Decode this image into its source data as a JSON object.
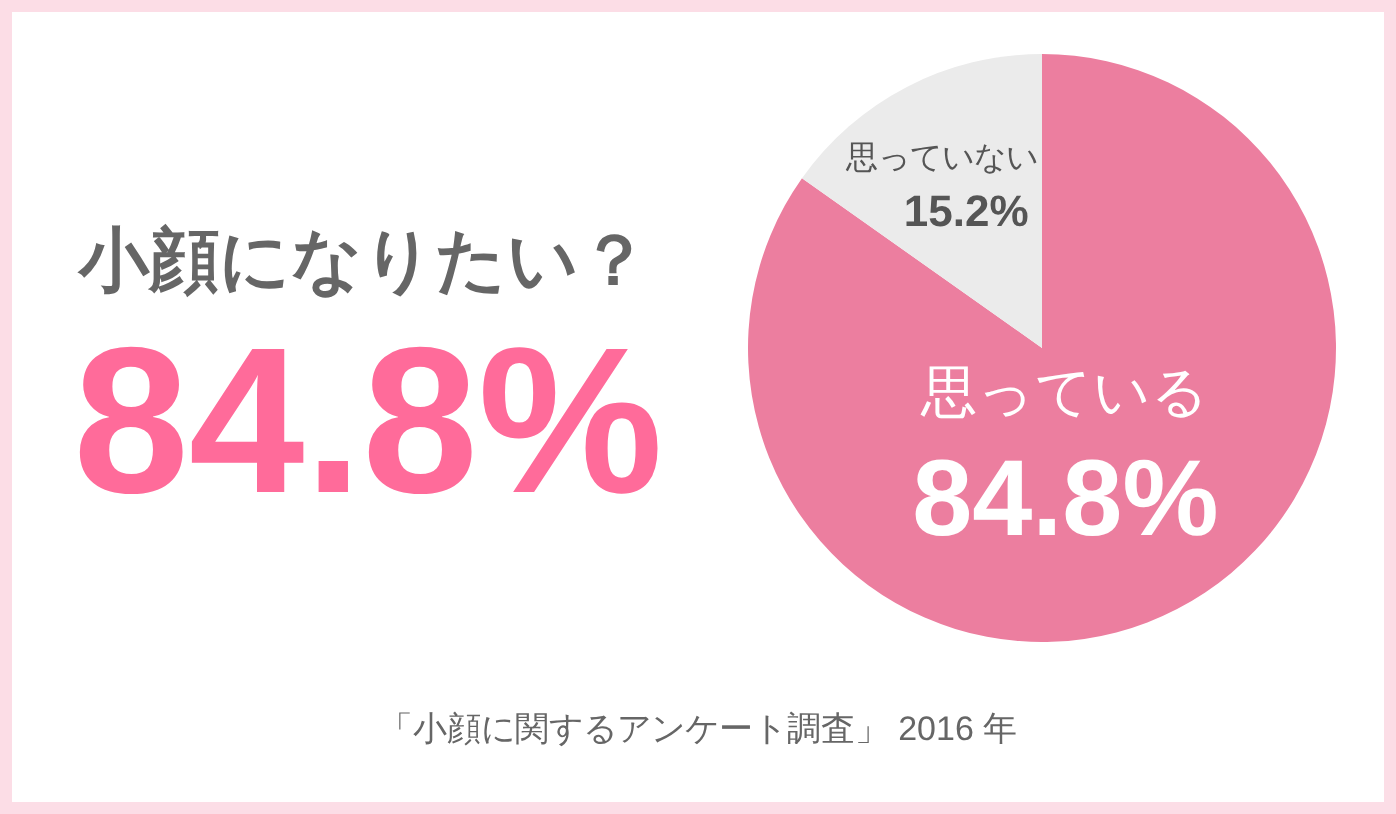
{
  "chart_data": {
    "type": "pie",
    "title": "小顔になりたい？",
    "categories": [
      "思っている",
      "思っていない"
    ],
    "values": [
      84.8,
      15.2
    ],
    "colors": [
      "#ec7e9f",
      "#ebebeb"
    ],
    "value_labels": [
      "84.8%",
      "15.2%"
    ],
    "annotations": [
      "84.8%",
      "「小顔に関するアンケート調査」 2016 年"
    ]
  }
}
